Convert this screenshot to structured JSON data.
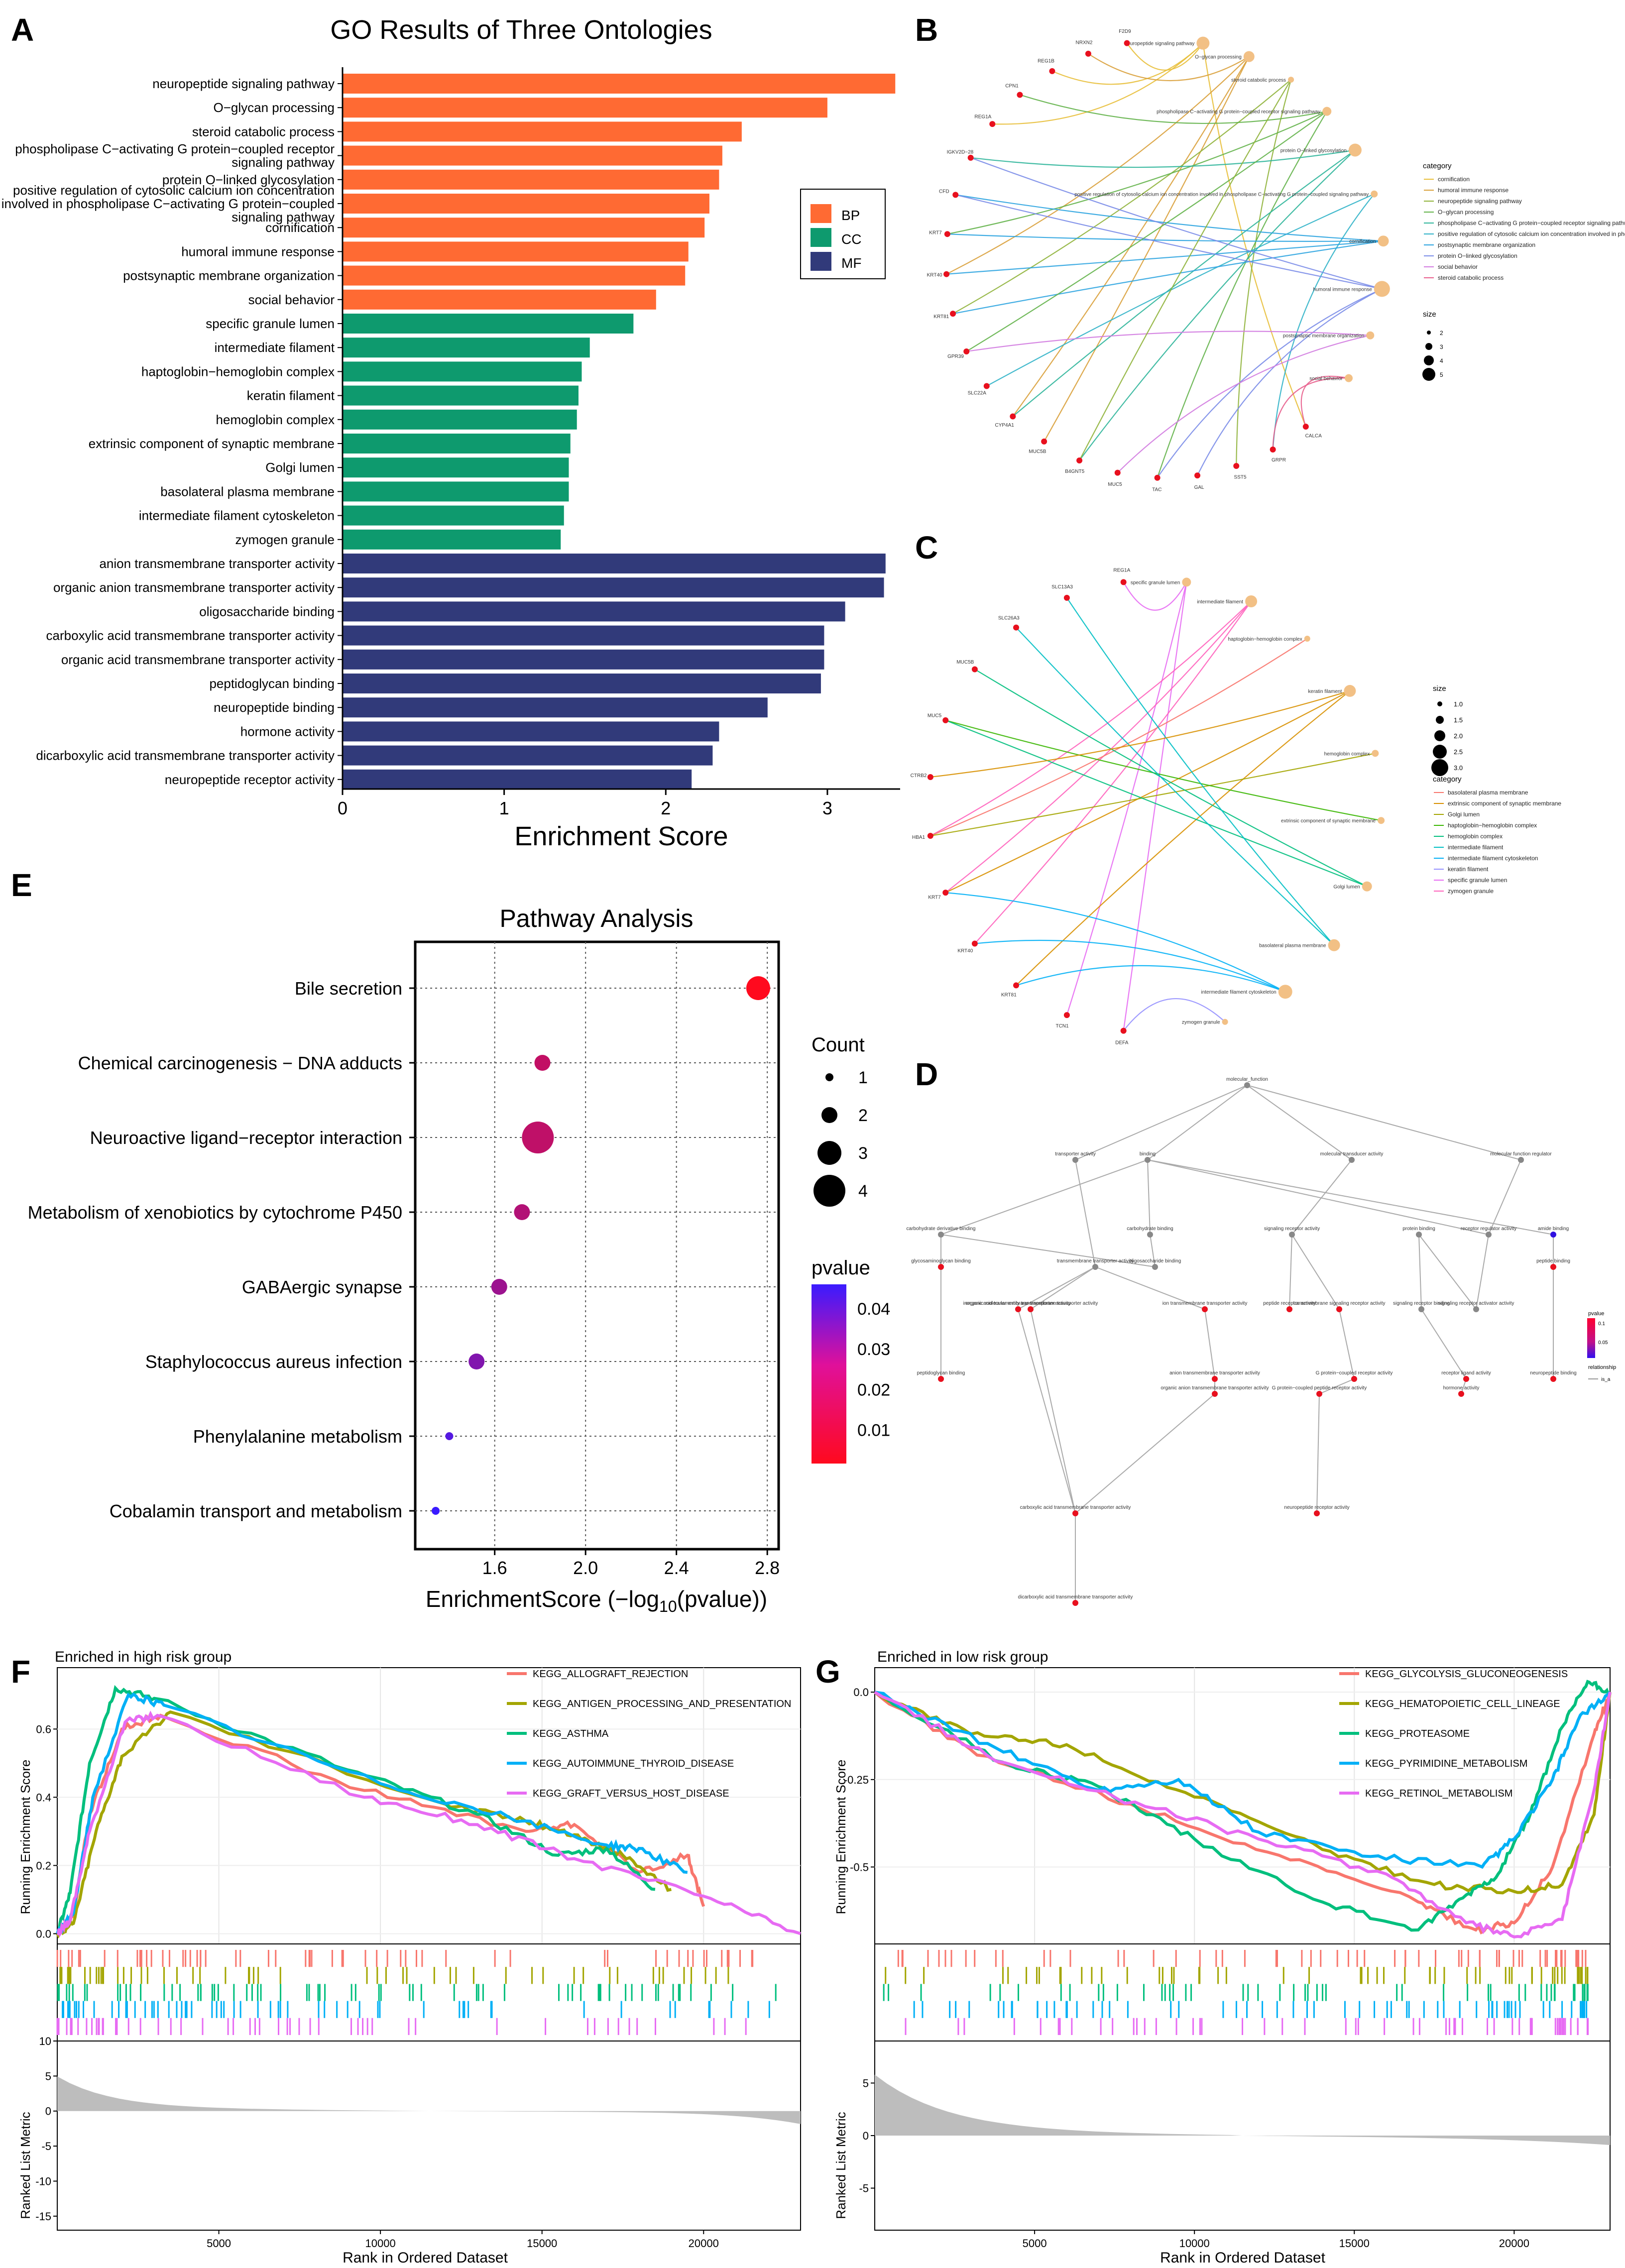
{
  "panel_labels": [
    "A",
    "B",
    "C",
    "D",
    "E",
    "F",
    "G"
  ],
  "colors": {
    "bp": "#FF6A33",
    "cc": "#0E9A6E",
    "mf": "#313A7A",
    "node": "#F2C085",
    "gene": "#E8101E"
  },
  "chart_data": [
    {
      "id": "A",
      "type": "bar",
      "orientation": "horizontal",
      "title": "GO Results of Three Ontologies",
      "xlabel": "Enrichment Score",
      "ylabel": "",
      "xlim": [
        0,
        3.45
      ],
      "xticks": [
        0,
        1,
        2,
        3
      ],
      "legend": {
        "position": "right",
        "entries": [
          "BP",
          "CC",
          "MF"
        ]
      },
      "categories": [
        "neuropeptide signaling pathway",
        "O−glycan processing",
        "steroid catabolic process",
        "phospholipase C−activating G protein−coupled receptor|signaling pathway",
        "protein O−linked glycosylation",
        "positive regulation of cytosolic calcium ion concentration|involved in phospholipase C−activating G protein−coupled|signaling pathway",
        "cornification",
        "humoral immune response",
        "postsynaptic membrane organization",
        "social behavior",
        "specific granule lumen",
        "intermediate filament",
        "haptoglobin−hemoglobin complex",
        "keratin filament",
        "hemoglobin complex",
        "extrinsic component of synaptic membrane",
        "Golgi lumen",
        "basolateral plasma membrane",
        "intermediate filament cytoskeleton",
        "zymogen granule",
        "anion transmembrane transporter activity",
        "organic anion transmembrane transporter activity",
        "oligosaccharide binding",
        "carboxylic acid transmembrane transporter activity",
        "organic acid transmembrane transporter activity",
        "peptidoglycan binding",
        "neuropeptide binding",
        "hormone activity",
        "dicarboxylic acid transmembrane transporter activity",
        "neuropeptide receptor activity"
      ],
      "groups": [
        "BP",
        "BP",
        "BP",
        "BP",
        "BP",
        "BP",
        "BP",
        "BP",
        "BP",
        "BP",
        "CC",
        "CC",
        "CC",
        "CC",
        "CC",
        "CC",
        "CC",
        "CC",
        "CC",
        "CC",
        "MF",
        "MF",
        "MF",
        "MF",
        "MF",
        "MF",
        "MF",
        "MF",
        "MF",
        "MF"
      ],
      "values": [
        3.42,
        3.0,
        2.47,
        2.35,
        2.33,
        2.27,
        2.24,
        2.14,
        2.12,
        1.94,
        1.8,
        1.53,
        1.48,
        1.46,
        1.45,
        1.41,
        1.4,
        1.4,
        1.37,
        1.35,
        3.36,
        3.35,
        3.11,
        2.98,
        2.98,
        2.96,
        2.63,
        2.33,
        2.29,
        2.16
      ]
    },
    {
      "id": "E",
      "type": "scatter",
      "title": "Pathway Analysis",
      "xlabel": "EnrichmentScore (−log10(pvalue))",
      "ylabel": "",
      "xlim": [
        1.25,
        2.85
      ],
      "xticks": [
        1.6,
        2.0,
        2.4,
        2.8
      ],
      "categories": [
        "Bile secretion",
        "Chemical carcinogenesis − DNA adducts",
        "Neuroactive ligand−receptor interaction",
        "Metabolism of xenobiotics by cytochrome P450",
        "GABAergic synapse",
        "Staphylococcus aureus infection",
        "Phenylalanine metabolism",
        "Cobalamin transport and metabolism"
      ],
      "x": [
        2.76,
        1.81,
        1.79,
        1.72,
        1.62,
        1.52,
        1.4,
        1.34
      ],
      "count": [
        3,
        2,
        4,
        2,
        2,
        2,
        1,
        1
      ],
      "pvalue": [
        0.0017,
        0.0155,
        0.0162,
        0.019,
        0.024,
        0.03,
        0.04,
        0.046
      ],
      "legend": {
        "count_title": "Count",
        "count_values": [
          1,
          2,
          3,
          4
        ],
        "pvalue_title": "pvalue",
        "pvalue_ticks": [
          0.04,
          0.03,
          0.02,
          0.01
        ]
      }
    },
    {
      "id": "F",
      "type": "line",
      "title": "Enriched in high risk group",
      "xlabel": "Rank in Ordered Dataset",
      "ylabel": "Running Enrichment Score",
      "ylabel_bottom": "Ranked List Metric",
      "xlim": [
        0,
        23000
      ],
      "xticks": [
        5000,
        10000,
        15000,
        20000
      ],
      "ylim": [
        -0.03,
        0.78
      ],
      "yticks": [
        0.0,
        0.2,
        0.4,
        0.6
      ],
      "ylim_bottom": [
        -17,
        10
      ],
      "yticks_bottom": [
        10,
        5,
        0,
        -5,
        -10,
        -15
      ],
      "series": [
        {
          "name": "KEGG_ALLOGRAFT_REJECTION",
          "color": "#F8766D",
          "x": [
            0,
            500,
            1000,
            2000,
            3200,
            9500,
            14500,
            16000,
            18000,
            19500,
            20000
          ],
          "y": [
            0,
            0.05,
            0.35,
            0.6,
            0.64,
            0.42,
            0.3,
            0.32,
            0.18,
            0.23,
            0.08
          ]
        },
        {
          "name": "KEGG_ANTIGEN_PROCESSING_AND_PRESENTATION",
          "color": "#A3A500",
          "x": [
            0,
            500,
            1200,
            2000,
            3500,
            12000,
            14500,
            16000,
            17500,
            19000
          ],
          "y": [
            0,
            0.03,
            0.3,
            0.52,
            0.65,
            0.38,
            0.33,
            0.29,
            0.23,
            0.13
          ]
        },
        {
          "name": "KEGG_ASTHMA",
          "color": "#00BF7D",
          "x": [
            0,
            400,
            1000,
            1800,
            3000,
            9000,
            13000,
            15500,
            17000,
            18500
          ],
          "y": [
            0,
            0.12,
            0.5,
            0.72,
            0.69,
            0.48,
            0.35,
            0.23,
            0.25,
            0.13
          ]
        },
        {
          "name": "KEGG_AUTOIMMUNE_THYROID_DISEASE",
          "color": "#00B0F6",
          "x": [
            0,
            500,
            1100,
            2200,
            3300,
            10000,
            14000,
            17000,
            18000,
            19500
          ],
          "y": [
            0,
            0.06,
            0.4,
            0.7,
            0.67,
            0.44,
            0.34,
            0.26,
            0.25,
            0.18
          ]
        },
        {
          "name": "KEGG_GRAFT_VERSUS_HOST_DISEASE",
          "color": "#E76BF3",
          "x": [
            0,
            400,
            1000,
            2100,
            3100,
            9500,
            13000,
            16000,
            20000,
            23000
          ],
          "y": [
            0,
            0.04,
            0.3,
            0.62,
            0.64,
            0.4,
            0.32,
            0.22,
            0.11,
            0.0
          ]
        }
      ]
    },
    {
      "id": "G",
      "type": "line",
      "title": "Enriched in low risk group",
      "xlabel": "Rank in Ordered Dataset",
      "ylabel": "Running Enrichment Score",
      "ylabel_bottom": "Ranked List Metric",
      "xlim": [
        0,
        23000
      ],
      "xticks": [
        5000,
        10000,
        15000,
        20000
      ],
      "ylim": [
        -0.72,
        0.07
      ],
      "yticks": [
        0.0,
        -0.25,
        -0.5
      ],
      "ylim_bottom": [
        -9,
        9
      ],
      "yticks_bottom": [
        5,
        0,
        -5
      ],
      "series": [
        {
          "name": "KEGG_GLYCOLYSIS_GLUCONEOGENESIS",
          "color": "#F8766D",
          "x": [
            0,
            3200,
            8000,
            13000,
            17000,
            18800,
            20000,
            21200,
            22500,
            23000
          ],
          "y": [
            0,
            -0.18,
            -0.32,
            -0.48,
            -0.6,
            -0.68,
            -0.66,
            -0.5,
            -0.12,
            0.0
          ]
        },
        {
          "name": "KEGG_HEMATOPOIETIC_CELL_LINEAGE",
          "color": "#A3A500",
          "x": [
            0,
            3000,
            6000,
            10000,
            14000,
            17500,
            20000,
            21500,
            22500,
            23000
          ],
          "y": [
            0,
            -0.12,
            -0.15,
            -0.3,
            -0.45,
            -0.55,
            -0.57,
            -0.55,
            -0.35,
            0.0
          ]
        },
        {
          "name": "KEGG_PROTEASOME",
          "color": "#00BF7D",
          "x": [
            0,
            4000,
            7000,
            10000,
            14000,
            17000,
            18500,
            19500,
            20500,
            21500,
            22300,
            23000
          ],
          "y": [
            0,
            -0.2,
            -0.27,
            -0.42,
            -0.6,
            -0.68,
            -0.58,
            -0.52,
            -0.35,
            -0.1,
            0.03,
            0.0
          ]
        },
        {
          "name": "KEGG_PYRIMIDINE_METABOLISM",
          "color": "#00B0F6",
          "x": [
            0,
            3800,
            7000,
            9500,
            12000,
            15500,
            19000,
            20000,
            21200,
            22000,
            23000
          ],
          "y": [
            0,
            -0.16,
            -0.28,
            -0.25,
            -0.4,
            -0.47,
            -0.5,
            -0.42,
            -0.25,
            -0.08,
            0.0
          ]
        },
        {
          "name": "KEGG_RETINOL_METABOLISM",
          "color": "#E76BF3",
          "x": [
            0,
            3500,
            7500,
            12000,
            16000,
            18500,
            20000,
            21500,
            22500,
            23000
          ],
          "y": [
            0,
            -0.18,
            -0.3,
            -0.42,
            -0.52,
            -0.66,
            -0.7,
            -0.65,
            -0.28,
            0.0
          ]
        }
      ]
    }
  ],
  "panel_B": {
    "nodes": [
      "neuropeptide signaling pathway",
      "O−glycan processing",
      "steroid catabolic process",
      "phospholipase C−activating G protein−coupled receptor signaling pathway",
      "protein O−linked glycosylation",
      "positive regulation of cytosolic calcium ion concentration involved in phospholipase C−activating G protein−coupled signaling pathway",
      "cornification",
      "humoral immune response",
      "postsynaptic membrane organization",
      "social behavior"
    ],
    "genes": [
      "CALCA",
      "GRPR",
      "SST5",
      "GAL",
      "TAC",
      "MUC5",
      "B4GNT5",
      "MUC5B",
      "CYP4A1",
      "SLC22A",
      "GPR39",
      "KRT81",
      "KRT40",
      "KRT7",
      "CFD",
      "IGKV2D−28",
      "REG1A",
      "CPN1",
      "REG1B",
      "NRXN2",
      "F2D9"
    ],
    "legend": {
      "category_title": "category",
      "categories": [
        "cornification",
        "humoral immune response",
        "neuropeptide signaling pathway",
        "O−glycan processing",
        "phospholipase C−activating G protein−coupled receptor signaling pathway",
        "positive regulation of cytosolic calcium ion concentration involved in phospholipase C−activating G protein−coupled signaling pathway",
        "postsynaptic membrane organization",
        "protein O−linked glycosylation",
        "social behavior",
        "steroid catabolic process"
      ],
      "size_title": "size",
      "size_values": [
        2,
        3,
        4,
        5
      ]
    }
  },
  "panel_C": {
    "nodes": [
      "specific granule lumen",
      "intermediate filament",
      "haptoglobin−hemoglobin complex",
      "keratin filament",
      "hemoglobin complex",
      "extrinsic component of synaptic membrane",
      "Golgi lumen",
      "basolateral plasma membrane",
      "intermediate filament cytoskeleton",
      "zymogen granule"
    ],
    "genes": [
      "REG1A",
      "SLC13A3",
      "SLC26A3",
      "MUC5B",
      "MUC5",
      "CTRB2",
      "HBA1",
      "KRT7",
      "KRT40",
      "KRT81",
      "TCN1",
      "DEFA"
    ],
    "legend": {
      "size_title": "size",
      "size_values": [
        1.0,
        1.5,
        2.0,
        2.5,
        3.0
      ],
      "category_title": "category",
      "categories": [
        "basolateral plasma membrane",
        "extrinsic component of synaptic membrane",
        "Golgi lumen",
        "haptoglobin−hemoglobin complex",
        "hemoglobin complex",
        "intermediate filament",
        "intermediate filament cytoskeleton",
        "keratin filament",
        "specific granule lumen",
        "zymogen granule"
      ]
    }
  },
  "panel_D": {
    "nodes": [
      "molecular_function",
      "transporter activity",
      "binding",
      "molecular transducer activity",
      "molecular function regulator",
      "carbohydrate derivative binding",
      "transmembrane transporter activity",
      "carbohydrate binding",
      "signaling receptor activity",
      "protein binding",
      "receptor regulator activity",
      "amide binding",
      "glycosaminoglycan binding",
      "inorganic molecular entity transmembrane transporter activity",
      "organic acid transmembrane transporter activity",
      "oligosaccharide binding",
      "ion transmembrane transporter activity",
      "transmembrane signaling receptor activity",
      "peptide receptor activity",
      "signaling receptor binding",
      "signaling receptor activator activity",
      "peptide binding",
      "peptidoglycan binding",
      "anion transmembrane transporter activity",
      "G protein−coupled receptor activity",
      "receptor ligand activity",
      "neuropeptide binding",
      "organic anion transmembrane transporter activity",
      "G protein−coupled peptide receptor activity",
      "hormone activity",
      "carboxylic acid transmembrane transporter activity",
      "neuropeptide receptor activity",
      "dicarboxylic acid transmembrane transporter activity"
    ],
    "legend": {
      "pvalue_title": "pvalue",
      "pvalue_ticks": [
        "0.1",
        "0.05"
      ],
      "relationship_title": "relationship",
      "relationship_value": "is_a"
    }
  }
}
